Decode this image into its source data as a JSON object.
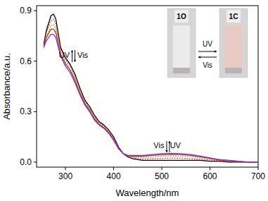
{
  "chart_data": {
    "type": "line",
    "x_label": "Wavelength/nm",
    "y_label": "Absorbance/a.u.",
    "x": [
      255,
      260,
      270,
      275,
      280,
      290,
      300,
      310,
      320,
      330,
      340,
      350,
      360,
      370,
      380,
      390,
      400,
      410,
      420,
      430,
      440,
      460,
      480,
      500,
      520,
      540,
      560,
      580,
      600,
      620,
      640,
      660,
      680,
      700
    ],
    "series": [
      {
        "color": "#000000",
        "line_style": "solid",
        "values": [
          0.7,
          0.78,
          0.87,
          0.88,
          0.85,
          0.68,
          0.62,
          0.58,
          0.52,
          0.44,
          0.37,
          0.33,
          0.28,
          0.24,
          0.22,
          0.19,
          0.15,
          0.09,
          0.05,
          0.03,
          0.02,
          0.01,
          0.01,
          0.01,
          0.01,
          0.01,
          0.01,
          0.01,
          0.005,
          0.005,
          0.0,
          0.0,
          0.0,
          0.0
        ]
      },
      {
        "color": "#d62020",
        "line_style": "dotted",
        "values": [
          0.7,
          0.77,
          0.84,
          0.85,
          0.82,
          0.67,
          0.61,
          0.57,
          0.51,
          0.43,
          0.36,
          0.32,
          0.27,
          0.235,
          0.215,
          0.185,
          0.145,
          0.088,
          0.05,
          0.032,
          0.025,
          0.018,
          0.02,
          0.022,
          0.024,
          0.023,
          0.02,
          0.016,
          0.012,
          0.008,
          0.004,
          0.002,
          0.0,
          0.0
        ]
      },
      {
        "color": "#e08020",
        "line_style": "dotted",
        "values": [
          0.69,
          0.75,
          0.81,
          0.82,
          0.79,
          0.65,
          0.595,
          0.555,
          0.495,
          0.42,
          0.355,
          0.315,
          0.265,
          0.23,
          0.21,
          0.18,
          0.14,
          0.085,
          0.05,
          0.035,
          0.03,
          0.027,
          0.03,
          0.035,
          0.037,
          0.036,
          0.032,
          0.025,
          0.018,
          0.011,
          0.006,
          0.003,
          0.0,
          0.0
        ]
      },
      {
        "color": "#8b4513",
        "line_style": "solid",
        "values": [
          0.69,
          0.74,
          0.79,
          0.79,
          0.77,
          0.64,
          0.585,
          0.545,
          0.485,
          0.41,
          0.348,
          0.308,
          0.258,
          0.225,
          0.205,
          0.175,
          0.135,
          0.082,
          0.05,
          0.037,
          0.035,
          0.035,
          0.04,
          0.044,
          0.046,
          0.045,
          0.04,
          0.031,
          0.022,
          0.013,
          0.008,
          0.004,
          0.0,
          0.0
        ]
      },
      {
        "color": "#8a2be2",
        "line_style": "solid",
        "values": [
          0.68,
          0.72,
          0.76,
          0.76,
          0.74,
          0.63,
          0.57,
          0.53,
          0.47,
          0.4,
          0.34,
          0.3,
          0.25,
          0.22,
          0.2,
          0.17,
          0.13,
          0.08,
          0.05,
          0.04,
          0.04,
          0.04,
          0.045,
          0.05,
          0.052,
          0.05,
          0.045,
          0.035,
          0.025,
          0.015,
          0.01,
          0.005,
          0.0,
          0.0
        ]
      }
    ],
    "xlim": [
      240,
      700
    ],
    "ylim": [
      -0.03,
      0.93
    ],
    "xticks": [
      300,
      400,
      500,
      600,
      700
    ],
    "yticks": [
      {
        "value": 0,
        "label": "0.0"
      },
      {
        "value": 0.3,
        "label": "0.3"
      },
      {
        "value": 0.6,
        "label": "0.6"
      },
      {
        "value": 0.9,
        "label": "0.9"
      }
    ],
    "grid": false,
    "annotations": [
      "UV",
      "Vis",
      "Vis",
      "UV",
      "1O",
      "1C",
      "UV",
      "Vis"
    ]
  }
}
